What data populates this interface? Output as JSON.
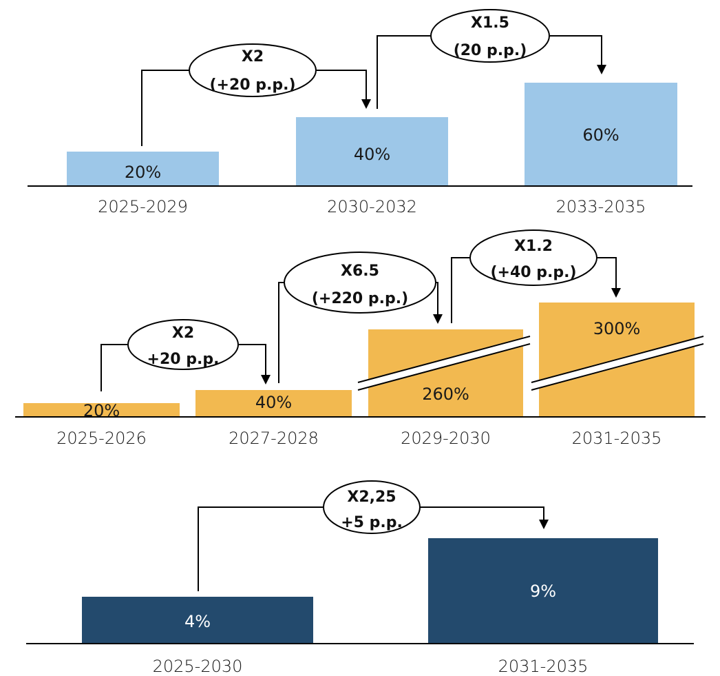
{
  "colors": {
    "panel1": "#9dc7e8",
    "panel2": "#f2b950",
    "panel3": "#234a6d"
  },
  "chart_data": [
    {
      "type": "bar",
      "categories": [
        "2025-2029",
        "2030-2032",
        "2033-2035"
      ],
      "values": [
        20,
        40,
        60
      ],
      "value_labels": [
        "20%",
        "40%",
        "60%"
      ],
      "annotations": [
        {
          "from": 0,
          "to": 1,
          "line1": "X2",
          "line2": "(+20 p.p.)"
        },
        {
          "from": 1,
          "to": 2,
          "line1": "X1.5",
          "line2": "(20 p.p.)"
        }
      ]
    },
    {
      "type": "bar",
      "categories": [
        "2025-2026",
        "2027-2028",
        "2029-2030",
        "2031-2035"
      ],
      "values": [
        20,
        40,
        260,
        300
      ],
      "value_labels": [
        "20%",
        "40%",
        "260%",
        "300%"
      ],
      "axis_break": [
        false,
        false,
        true,
        true
      ],
      "annotations": [
        {
          "from": 0,
          "to": 1,
          "line1": "X2",
          "line2": "+20 p.p."
        },
        {
          "from": 1,
          "to": 2,
          "line1": "X6.5",
          "line2": "(+220 p.p.)"
        },
        {
          "from": 2,
          "to": 3,
          "line1": "X1.2",
          "line2": "(+40 p.p.)"
        }
      ]
    },
    {
      "type": "bar",
      "categories": [
        "2025-2030",
        "2031-2035"
      ],
      "values": [
        4,
        9
      ],
      "value_labels": [
        "4%",
        "9%"
      ],
      "annotations": [
        {
          "from": 0,
          "to": 1,
          "line1": "X2,25",
          "line2": "+5 p.p."
        }
      ]
    }
  ]
}
